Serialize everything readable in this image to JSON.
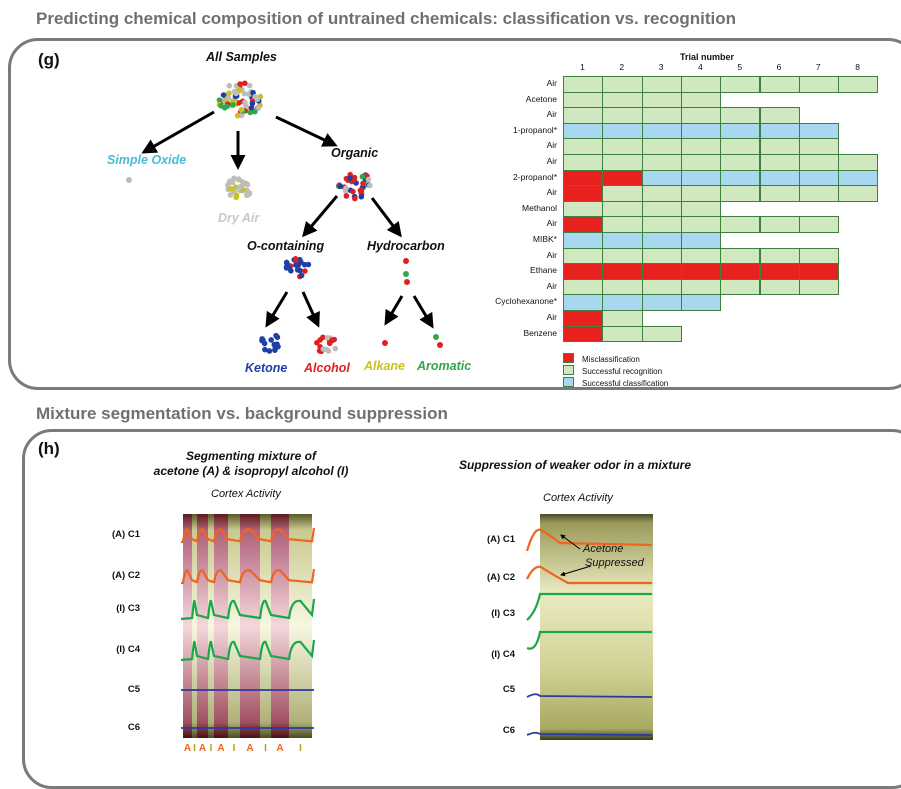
{
  "section_g_title": "Predicting chemical composition of untrained chemicals: classification vs. recognition",
  "section_h_title": "Mixture segmentation vs. background suppression",
  "panel_g": {
    "letter": "(g)",
    "tree": {
      "root": "All Samples",
      "simple_oxide": "Simple Oxide",
      "dry_air": "Dry Air",
      "organic": "Organic",
      "o_containing": "O-containing",
      "hydrocarbon": "Hydrocarbon",
      "ketone": "Ketone",
      "alcohol": "Alcohol",
      "alkane": "Alkane",
      "aromatic": "Aromatic"
    },
    "table": {
      "header": "Trial number",
      "trials": [
        "1",
        "2",
        "3",
        "4",
        "5",
        "6",
        "7",
        "8"
      ],
      "rows": [
        {
          "label": "Air",
          "cells": "gggggggg"
        },
        {
          "label": "Acetone",
          "cells": "gggg"
        },
        {
          "label": "Air",
          "cells": "gggggg"
        },
        {
          "label": "1-propanol*",
          "cells": "bbbbbbb"
        },
        {
          "label": "Air",
          "cells": "ggggggg"
        },
        {
          "label": "Air",
          "cells": "gggggggg"
        },
        {
          "label": "2-propanol*",
          "cells": "rrbbbbbb"
        },
        {
          "label": "Air",
          "cells": "rggggggg"
        },
        {
          "label": "Methanol",
          "cells": "gggg"
        },
        {
          "label": "Air",
          "cells": "rgggggg"
        },
        {
          "label": "MIBK*",
          "cells": "bbbb"
        },
        {
          "label": "Air",
          "cells": "ggggggg"
        },
        {
          "label": "Ethane",
          "cells": "rrrrrrr"
        },
        {
          "label": "Air",
          "cells": "ggggggg"
        },
        {
          "label": "Cyclohexanone*",
          "cells": "bbbb"
        },
        {
          "label": "Air",
          "cells": "rg"
        },
        {
          "label": "Benzene",
          "cells": "rgg"
        }
      ],
      "legend": [
        {
          "label": "Misclassification",
          "color": "#e8211e"
        },
        {
          "label": "Successful recognition",
          "color": "#cfe8bf"
        },
        {
          "label": "Successful classification",
          "color": "#a8d8f0"
        }
      ]
    }
  },
  "panel_h": {
    "letter": "(h)",
    "left": {
      "title_line1": "Segmenting mixture of",
      "title_line2": "acetone (A) & isopropyl alcohol (I)",
      "cortex": "Cortex Activity",
      "channels": [
        "(A) C1",
        "(A) C2",
        "(I) C3",
        "(I) C4",
        "C5",
        "C6"
      ],
      "sequence": [
        "A",
        "I",
        "A",
        "I",
        "A",
        "I",
        "A",
        "I",
        "A",
        "I"
      ]
    },
    "right": {
      "title": "Suppression of weaker odor in a mixture",
      "cortex": "Cortex Activity",
      "channels": [
        "(A) C1",
        "(A) C2",
        "(I) C3",
        "(I) C4",
        "C5",
        "C6"
      ],
      "annotation_line1": "Acetone",
      "annotation_line2": "Suppressed"
    }
  },
  "colors": {
    "misclass": "#e8211e",
    "recognition": "#cfe8bf",
    "classification": "#a8d8f0",
    "gray": "#bdbdbd",
    "blue": "#1e3fa8",
    "red": "#e02020",
    "green": "#2fa84a",
    "yellow": "#c9c21a",
    "cyan": "#48bcd8",
    "orange": "#f0641e",
    "trace_green": "#1aa84a",
    "trace_blue": "#2a3aa0"
  }
}
